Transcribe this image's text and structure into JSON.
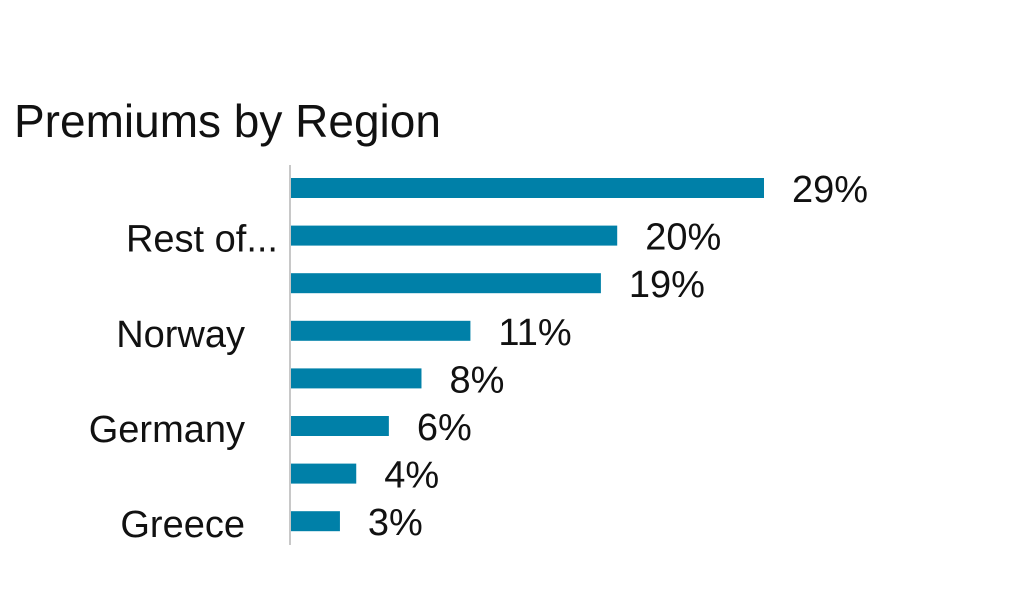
{
  "chart_data": {
    "type": "bar",
    "orientation": "horizontal",
    "title": "Premiums by Region",
    "categories": [
      "",
      "Rest of...",
      "",
      "Norway",
      "",
      "Germany",
      "",
      "Greece"
    ],
    "values": [
      29,
      20,
      19,
      11,
      8,
      6,
      4,
      3
    ],
    "value_labels": [
      "29%",
      "20%",
      "19%",
      "11%",
      "8%",
      "6%",
      "4%",
      "3%"
    ],
    "xlim": [
      0,
      30
    ],
    "grid": false,
    "legend": "none",
    "bar_color": "#0080A8",
    "axis_color": "#C8C8C8"
  }
}
